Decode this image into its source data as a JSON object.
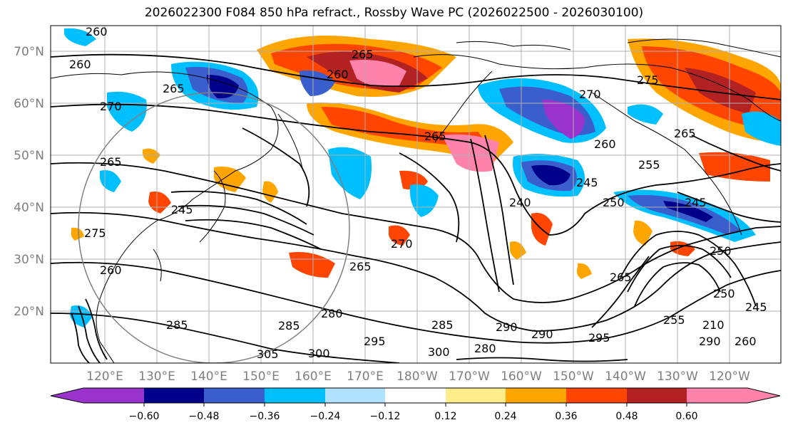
{
  "title": "2026022300 F084 850 hPa refract., Rossby Wave PC (2026022500 - 2026030100)",
  "map": {
    "lat_labels": [
      "70°N",
      "60°N",
      "50°N",
      "40°N",
      "30°N",
      "20°N"
    ],
    "lon_labels": [
      "120°E",
      "130°E",
      "140°E",
      "150°E",
      "160°E",
      "170°E",
      "180°W",
      "170°W",
      "160°W",
      "150°W",
      "140°W",
      "130°W",
      "120°W"
    ],
    "contour_labels": [
      "260",
      "260",
      "265",
      "270",
      "265",
      "260",
      "270",
      "275",
      "265",
      "265",
      "255",
      "260",
      "240",
      "245",
      "265",
      "245",
      "250",
      "245",
      "275",
      "270",
      "265",
      "260",
      "280",
      "285",
      "285",
      "295",
      "290",
      "300",
      "305",
      "280",
      "300",
      "290",
      "295",
      "285",
      "250",
      "255",
      "245",
      "250",
      "210",
      "290",
      "260",
      "265"
    ],
    "land_outline_color": "#000000",
    "grid_color": "#b0b0b0"
  },
  "colorbar": {
    "colors": [
      "#9933cc",
      "#00008b",
      "#3a5fcd",
      "#00bfff",
      "#b0e2ff",
      "#ffffff",
      "#ffec8b",
      "#ffa500",
      "#ff4500",
      "#b22222",
      "#ff82ab"
    ],
    "tick_labels": [
      "−0.60",
      "−0.48",
      "−0.36",
      "−0.24",
      "−0.12",
      "0.12",
      "0.24",
      "0.36",
      "0.48",
      "0.60"
    ]
  }
}
